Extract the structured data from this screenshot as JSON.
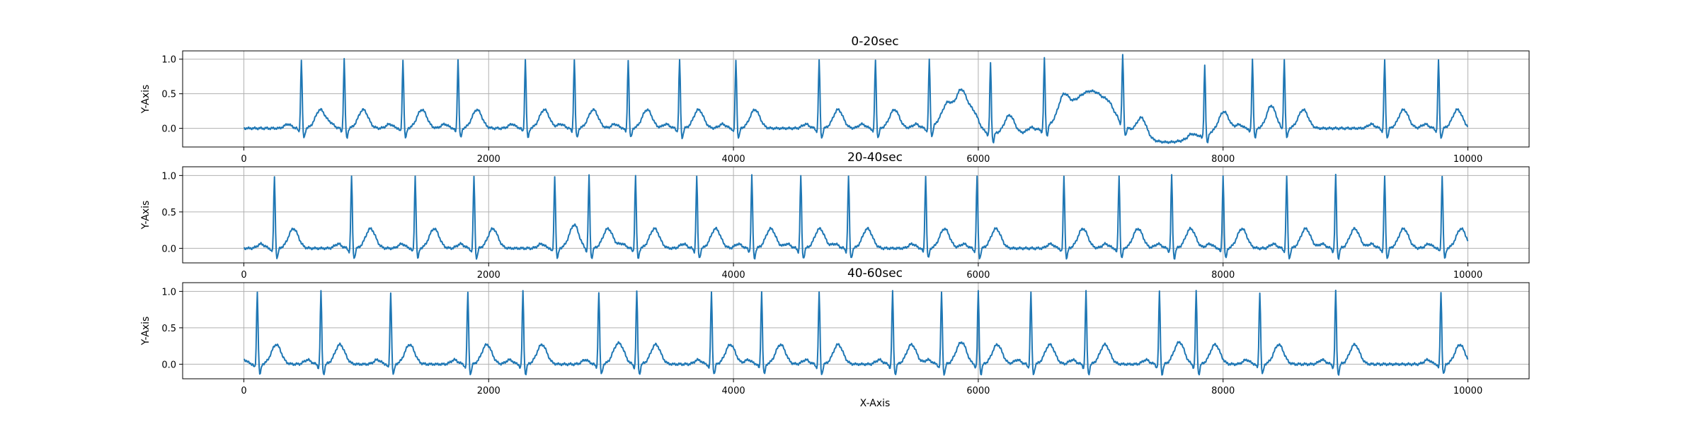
{
  "chart_data": [
    {
      "type": "line",
      "title": "0-20sec",
      "xlabel": "",
      "ylabel": "Y-Axis",
      "xlim": [
        -500,
        10500
      ],
      "ylim": [
        -0.27,
        1.12
      ],
      "xticks": [
        0,
        2000,
        4000,
        6000,
        8000,
        10000
      ],
      "yticks": [
        0.0,
        0.5,
        1.0
      ],
      "grid": true,
      "color": "#1f77b4",
      "beats": [
        470,
        820,
        1300,
        1750,
        2300,
        2700,
        3140,
        3560,
        4020,
        4700,
        5160,
        5600,
        6100,
        6540,
        7180,
        7850,
        8240,
        8500,
        9320,
        9760
      ],
      "artifact_events": [
        {
          "x": 5850,
          "y": 0.72
        },
        {
          "x": 6950,
          "y": 0.55
        },
        {
          "x": 7550,
          "y": -0.2
        }
      ]
    },
    {
      "type": "line",
      "title": "20-40sec",
      "xlabel": "",
      "ylabel": "Y-Axis",
      "xlim": [
        -500,
        10500
      ],
      "ylim": [
        -0.2,
        1.12
      ],
      "xticks": [
        0,
        2000,
        4000,
        6000,
        8000,
        10000
      ],
      "yticks": [
        0.0,
        0.5,
        1.0
      ],
      "grid": true,
      "color": "#1f77b4",
      "beats": [
        250,
        880,
        1400,
        1880,
        2540,
        2820,
        3200,
        3700,
        4150,
        4550,
        4940,
        5570,
        5990,
        6700,
        7150,
        7580,
        8000,
        8520,
        8920,
        9320,
        9790
      ]
    },
    {
      "type": "line",
      "title": "40-60sec",
      "xlabel": "X-Axis",
      "ylabel": "Y-Axis",
      "xlim": [
        -500,
        10500
      ],
      "ylim": [
        -0.2,
        1.12
      ],
      "xticks": [
        0,
        2000,
        4000,
        6000,
        8000,
        10000
      ],
      "yticks": [
        0.0,
        0.5,
        1.0
      ],
      "grid": true,
      "color": "#1f77b4",
      "beats": [
        110,
        630,
        1200,
        1830,
        2280,
        2900,
        3210,
        3820,
        4230,
        4700,
        5300,
        5700,
        6000,
        6430,
        6880,
        7480,
        7780,
        8300,
        8920,
        9780
      ]
    }
  ]
}
